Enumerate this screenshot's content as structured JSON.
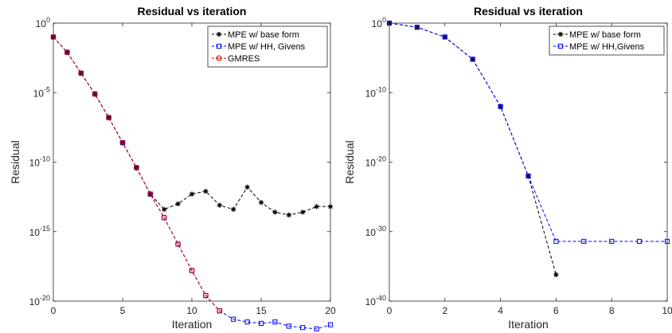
{
  "chart_data": [
    {
      "type": "line",
      "title": "Residual vs iteration",
      "xlabel": "Iteration",
      "ylabel": "Residual",
      "yscale": "log",
      "xlim": [
        0,
        20
      ],
      "ylim_exponent": [
        -20,
        0
      ],
      "xticks": [
        "0",
        "5",
        "10",
        "15",
        "20"
      ],
      "yticks": [
        {
          "base": "10",
          "exp": "0"
        },
        {
          "base": "10",
          "exp": "-5"
        },
        {
          "base": "10",
          "exp": "-10"
        },
        {
          "base": "10",
          "exp": "-15"
        },
        {
          "base": "10",
          "exp": "-20"
        }
      ],
      "legend_position": "top-right",
      "series": [
        {
          "name": "MPE w/ base form",
          "color": "#000000",
          "marker": "asterisk",
          "x": [
            0,
            1,
            2,
            3,
            4,
            5,
            6,
            7,
            8,
            9,
            10,
            11,
            12,
            13,
            14,
            15,
            16,
            17,
            18,
            19,
            20
          ],
          "log10_y": [
            -1.0,
            -2.1,
            -3.6,
            -5.1,
            -6.8,
            -8.6,
            -10.4,
            -12.3,
            -13.4,
            -13.0,
            -12.3,
            -12.1,
            -13.1,
            -13.4,
            -11.8,
            -12.9,
            -13.6,
            -13.8,
            -13.6,
            -13.2,
            -13.2
          ]
        },
        {
          "name": "MPE w/ HH, Givens",
          "color": "#0000ff",
          "marker": "square",
          "x": [
            0,
            1,
            2,
            3,
            4,
            5,
            6,
            7,
            8,
            9,
            10,
            11,
            12,
            13,
            14,
            15,
            16,
            17,
            18,
            19,
            20
          ],
          "log10_y": [
            -1.0,
            -2.1,
            -3.6,
            -5.1,
            -6.8,
            -8.6,
            -10.4,
            -12.3,
            -14.0,
            -15.9,
            -17.8,
            -19.6,
            -20.7,
            -21.3,
            -21.5,
            -21.6,
            -21.5,
            -21.8,
            -21.9,
            -22.0,
            -21.7
          ]
        },
        {
          "name": "GMRES",
          "color": "#cc0000",
          "marker": "circle",
          "x": [
            0,
            1,
            2,
            3,
            4,
            5,
            6,
            7,
            8,
            9,
            10,
            11,
            12
          ],
          "log10_y": [
            -1.0,
            -2.1,
            -3.6,
            -5.1,
            -6.8,
            -8.6,
            -10.4,
            -12.3,
            -14.0,
            -15.9,
            -17.8,
            -19.6,
            -20.7
          ]
        }
      ]
    },
    {
      "type": "line",
      "title": "Residual vs iteration",
      "xlabel": "Iteration",
      "ylabel": "Residual",
      "yscale": "log",
      "xlim": [
        0,
        10
      ],
      "ylim_exponent": [
        -40,
        0
      ],
      "xticks": [
        "0",
        "2",
        "4",
        "6",
        "8",
        "10"
      ],
      "yticks": [
        {
          "base": "10",
          "exp": "0"
        },
        {
          "base": "10",
          "exp": "-10"
        },
        {
          "base": "10",
          "exp": "-20"
        },
        {
          "base": "10",
          "exp": "-30"
        },
        {
          "base": "10",
          "exp": "-40"
        }
      ],
      "legend_position": "top-right",
      "series": [
        {
          "name": "MPE w/ base form",
          "color": "#000000",
          "marker": "asterisk",
          "x": [
            0,
            1,
            2,
            3,
            4,
            5,
            6
          ],
          "log10_y": [
            0.0,
            -0.6,
            -2.0,
            -5.2,
            -12.0,
            -22.0,
            -36.2
          ]
        },
        {
          "name": "MPE w/ HH,Givens",
          "color": "#0000ff",
          "marker": "square",
          "x": [
            0,
            1,
            2,
            3,
            4,
            5,
            6,
            7,
            8,
            9,
            10
          ],
          "log10_y": [
            0.0,
            -0.6,
            -2.0,
            -5.2,
            -12.0,
            -22.0,
            -31.4,
            -31.4,
            -31.4,
            -31.4,
            -31.4
          ]
        }
      ]
    }
  ]
}
